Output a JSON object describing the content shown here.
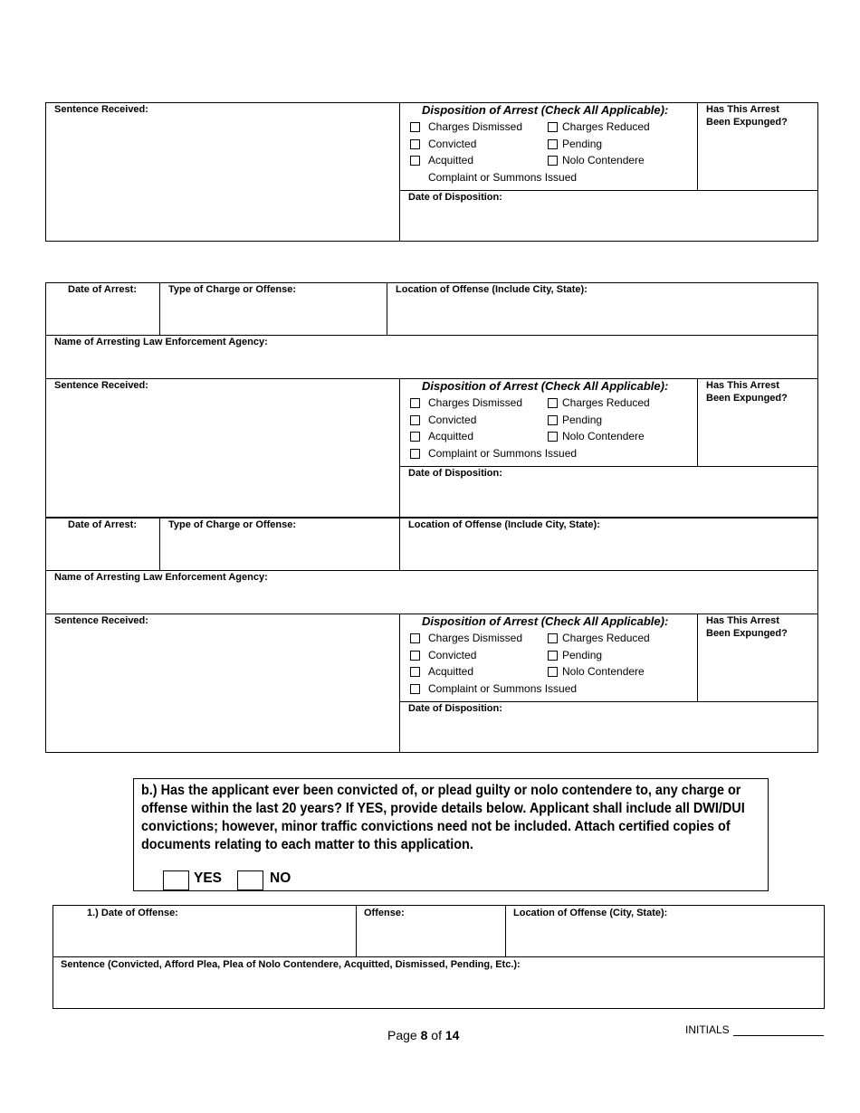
{
  "labels": {
    "sentence_received": "Sentence Received:",
    "disposition_title": "Disposition of Arrest  (Check All Applicable):",
    "expunged": "Has This Arrest Been Expunged?",
    "date_of_disposition": "Date of Disposition:",
    "date_of_arrest": "Date of Arrest:",
    "type_of_charge": "Type of Charge or Offense:",
    "location_of_offense": "Location of Offense (Include City, State):",
    "arresting_agency": "Name of Arresting Law Enforcement Agency:"
  },
  "disposition_options": {
    "charges_dismissed": "Charges Dismissed",
    "charges_reduced": "Charges Reduced",
    "convicted": "Convicted",
    "pending": "Pending",
    "acquitted": "Acquitted",
    "nolo_contendere": "Nolo Contendere",
    "complaint_summons": "Complaint or Summons Issued"
  },
  "question_b": {
    "text": "b.) Has the applicant ever been convicted of, or plead guilty or nolo contendere to, any charge or offense within the last 20 years?  If YES, provide details below.  Applicant shall include all DWI/DUI convictions; however, minor traffic convictions need not be included.  Attach certified copies of documents relating to each matter to this application.",
    "yes": "YES",
    "no": "NO"
  },
  "offense_table": {
    "date_of_offense": "1.)   Date of Offense:",
    "offense": "Offense:",
    "location": "Location of Offense (City, State):",
    "sentence": "Sentence (Convicted, Afford Plea, Plea of Nolo Contendere, Acquitted, Dismissed, Pending, Etc.):"
  },
  "footer": {
    "page_prefix": "Page ",
    "page_current": "8",
    "page_of": " of ",
    "page_total": "14",
    "initials": "INITIALS"
  }
}
